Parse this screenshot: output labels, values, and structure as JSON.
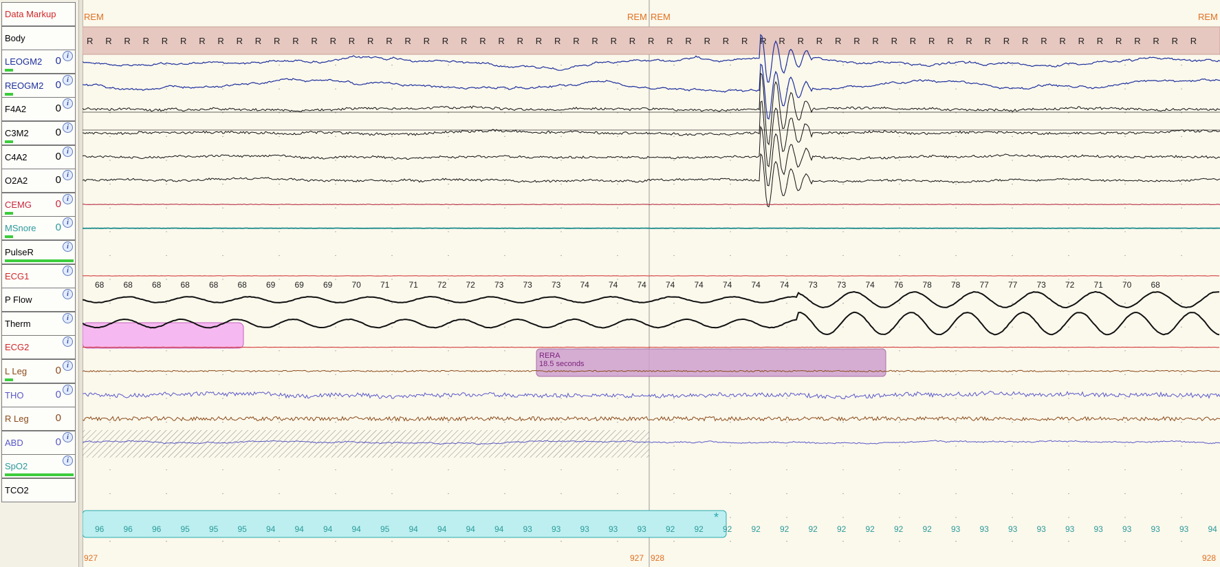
{
  "channels": [
    {
      "name": "Data Markup",
      "color": "#d02828",
      "zero": "",
      "info": false,
      "bar": 0
    },
    {
      "name": "Body",
      "color": "#000000",
      "zero": "",
      "info": false,
      "bar": 0
    },
    {
      "name": "LEOGM2",
      "color": "#1c2f9c",
      "zero": "0",
      "info": true,
      "bar": 0.12
    },
    {
      "name": "REOGM2",
      "color": "#1c2f9c",
      "zero": "0",
      "info": true,
      "bar": 0.12
    },
    {
      "name": "F4A2",
      "color": "#000000",
      "zero": "0",
      "info": true,
      "bar": 0
    },
    {
      "name": "C3M2",
      "color": "#000000",
      "zero": "0",
      "info": true,
      "bar": 0.12
    },
    {
      "name": "C4A2",
      "color": "#000000",
      "zero": "0",
      "info": true,
      "bar": 0
    },
    {
      "name": "O2A2",
      "color": "#000000",
      "zero": "0",
      "info": true,
      "bar": 0
    },
    {
      "name": "CEMG",
      "color": "#c8283c",
      "zero": "0",
      "info": true,
      "bar": 0.12
    },
    {
      "name": "MSnore",
      "color": "#2a9a9a",
      "zero": "0",
      "info": true,
      "bar": 0.12
    },
    {
      "name": "PulseR",
      "color": "#000000",
      "zero": "",
      "info": true,
      "bar": 1
    },
    {
      "name": "ECG1",
      "color": "#d02828",
      "zero": "",
      "info": true,
      "bar": 0
    },
    {
      "name": "P Flow",
      "color": "#000000",
      "zero": "",
      "info": true,
      "bar": 0
    },
    {
      "name": "Therm",
      "color": "#000000",
      "zero": "",
      "info": true,
      "bar": 0
    },
    {
      "name": "ECG2",
      "color": "#d02828",
      "zero": "",
      "info": true,
      "bar": 0
    },
    {
      "name": "L Leg",
      "color": "#8a4a18",
      "zero": "0",
      "info": true,
      "bar": 0.12
    },
    {
      "name": "THO",
      "color": "#5858c8",
      "zero": "0",
      "info": true,
      "bar": 0
    },
    {
      "name": "R Leg",
      "color": "#8a4a18",
      "zero": "0",
      "info": false,
      "bar": 0
    },
    {
      "name": "ABD",
      "color": "#5858c8",
      "zero": "0",
      "info": true,
      "bar": 0
    },
    {
      "name": "SpO2",
      "color": "#2a9a9a",
      "zero": "",
      "info": true,
      "bar": 1
    },
    {
      "name": "TCO2",
      "color": "#000000",
      "zero": "",
      "info": false,
      "bar": 0
    }
  ],
  "epochs": {
    "left_stage": "REM",
    "right_stage": "REM",
    "left_stage_end": "REM",
    "right_stage_end": "REM",
    "left_number": "927",
    "mid_left_number": "927",
    "mid_right_number": "928",
    "right_number": "928"
  },
  "body_position_marker": "R",
  "pulse_values": [
    "68",
    "68",
    "68",
    "68",
    "68",
    "68",
    "69",
    "69",
    "69",
    "70",
    "71",
    "71",
    "72",
    "72",
    "73",
    "73",
    "73",
    "74",
    "74",
    "74",
    "74",
    "74",
    "74",
    "74",
    "74",
    "73",
    "73",
    "74",
    "76",
    "78",
    "78",
    "77",
    "77",
    "73",
    "72",
    "71",
    "70",
    "68"
  ],
  "spo2_values": [
    "96",
    "96",
    "96",
    "95",
    "95",
    "95",
    "94",
    "94",
    "94",
    "94",
    "95",
    "94",
    "94",
    "94",
    "94",
    "93",
    "93",
    "93",
    "93",
    "93",
    "92",
    "92",
    "92",
    "92",
    "92",
    "92",
    "92",
    "92",
    "92",
    "92",
    "93",
    "93",
    "93",
    "93",
    "93",
    "93",
    "93",
    "93",
    "93",
    "94",
    "94"
  ],
  "events": {
    "rera": {
      "label": "RERA",
      "duration": "18.5 seconds"
    },
    "desat_marker": "*"
  },
  "colors": {
    "background": "#fbf8ec",
    "body_band": "#e6c8c0",
    "flow_event": "#f6b8f0",
    "rera_event": "#cfa0cf",
    "spo2_event": "#bdeff0",
    "annotation_text": "#e07020",
    "rera_text": "#7a1f7a",
    "spo2_text": "#2a9a9a"
  }
}
